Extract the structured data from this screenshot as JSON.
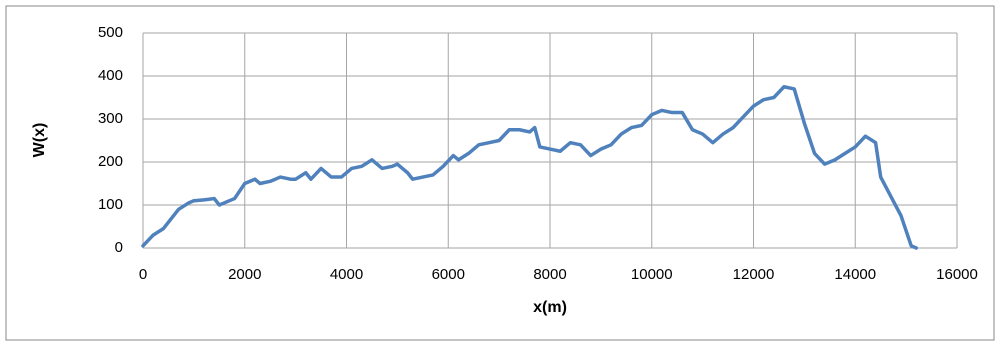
{
  "chart_data": {
    "type": "line",
    "xlabel": "x(m)",
    "ylabel": "W(x)",
    "x": [
      0,
      200,
      400,
      500,
      700,
      900,
      1000,
      1200,
      1400,
      1500,
      1700,
      1800,
      2000,
      2200,
      2300,
      2500,
      2700,
      2900,
      3000,
      3200,
      3300,
      3500,
      3700,
      3900,
      4100,
      4300,
      4500,
      4700,
      4900,
      5000,
      5200,
      5300,
      5500,
      5700,
      5900,
      6100,
      6200,
      6400,
      6600,
      6800,
      7000,
      7200,
      7400,
      7600,
      7700,
      7800,
      8000,
      8200,
      8400,
      8600,
      8800,
      9000,
      9200,
      9400,
      9600,
      9800,
      10000,
      10200,
      10400,
      10600,
      10800,
      11000,
      11200,
      11400,
      11600,
      11800,
      12000,
      12200,
      12400,
      12600,
      12800,
      13000,
      13200,
      13400,
      13600,
      13800,
      14000,
      14200,
      14400,
      14500,
      14700,
      14900,
      15000,
      15100,
      15200
    ],
    "series": [
      {
        "name": "W(x)",
        "color": "#4f81bd",
        "values": [
          5,
          30,
          45,
          60,
          90,
          105,
          110,
          112,
          115,
          100,
          110,
          115,
          150,
          160,
          150,
          155,
          165,
          160,
          160,
          175,
          160,
          185,
          165,
          165,
          185,
          190,
          205,
          185,
          190,
          195,
          175,
          160,
          165,
          170,
          190,
          215,
          205,
          220,
          240,
          245,
          250,
          275,
          275,
          270,
          280,
          235,
          230,
          225,
          245,
          240,
          215,
          230,
          240,
          265,
          280,
          285,
          310,
          320,
          315,
          315,
          275,
          265,
          245,
          265,
          280,
          305,
          330,
          345,
          350,
          375,
          370,
          290,
          220,
          195,
          205,
          220,
          235,
          260,
          245,
          165,
          120,
          75,
          40,
          5,
          0
        ]
      }
    ],
    "xlim": [
      0,
      16000
    ],
    "xticks": [
      0,
      2000,
      4000,
      6000,
      8000,
      10000,
      12000,
      14000,
      16000
    ],
    "ylim": [
      0,
      500
    ],
    "yticks": [
      0,
      100,
      200,
      300,
      400,
      500
    ],
    "grid": true
  }
}
